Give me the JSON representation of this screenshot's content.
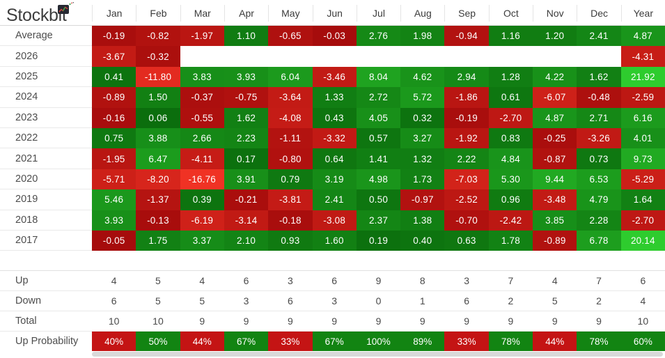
{
  "brand": {
    "name": "Stockbit"
  },
  "colors": {
    "green_dark": "#0a6b0c",
    "green_bright": "#2ecc2e",
    "red_dark": "#a40b0b",
    "red_bright": "#f03224",
    "prob_green": "#128412",
    "prob_red": "#c41414",
    "green_cap": 20,
    "red_cap": 16,
    "gamma": 0.6,
    "header_text": "#3b3b3b",
    "label_text": "#4d4d4d",
    "cell_text": "#ffffff"
  },
  "chart_data": {
    "type": "heatmap",
    "columns": [
      "Jan",
      "Feb",
      "Mar",
      "Apr",
      "May",
      "Jun",
      "Jul",
      "Aug",
      "Sep",
      "Oct",
      "Nov",
      "Dec",
      "Year"
    ],
    "value_unit": "%",
    "rows": [
      {
        "label": "Average",
        "values": [
          -0.19,
          -0.82,
          -1.97,
          1.1,
          -0.65,
          -0.03,
          2.76,
          1.98,
          -0.94,
          1.16,
          1.2,
          2.41,
          4.87
        ]
      },
      {
        "label": "2026",
        "values": [
          -3.67,
          -0.32,
          null,
          null,
          null,
          null,
          null,
          null,
          null,
          null,
          null,
          null,
          -4.31
        ]
      },
      {
        "label": "2025",
        "values": [
          0.41,
          -11.8,
          3.83,
          3.93,
          6.04,
          -3.46,
          8.04,
          4.62,
          2.94,
          1.28,
          4.22,
          1.62,
          21.92
        ]
      },
      {
        "label": "2024",
        "values": [
          -0.89,
          1.5,
          -0.37,
          -0.75,
          -3.64,
          1.33,
          2.72,
          5.72,
          -1.86,
          0.61,
          -6.07,
          -0.48,
          -2.59
        ]
      },
      {
        "label": "2023",
        "values": [
          -0.16,
          0.06,
          -0.55,
          1.62,
          -4.08,
          0.43,
          4.05,
          0.32,
          -0.19,
          -2.7,
          4.87,
          2.71,
          6.16
        ]
      },
      {
        "label": "2022",
        "values": [
          0.75,
          3.88,
          2.66,
          2.23,
          -1.11,
          -3.32,
          0.57,
          3.27,
          -1.92,
          0.83,
          -0.25,
          -3.26,
          4.01
        ]
      },
      {
        "label": "2021",
        "values": [
          -1.95,
          6.47,
          -4.11,
          0.17,
          -0.8,
          0.64,
          1.41,
          1.32,
          2.22,
          4.84,
          -0.87,
          0.73,
          9.73
        ]
      },
      {
        "label": "2020",
        "values": [
          -5.71,
          -8.2,
          -16.76,
          3.91,
          0.79,
          3.19,
          4.98,
          1.73,
          -7.03,
          5.3,
          9.44,
          6.53,
          -5.29
        ]
      },
      {
        "label": "2019",
        "values": [
          5.46,
          -1.37,
          0.39,
          -0.21,
          -3.81,
          2.41,
          0.5,
          -0.97,
          -2.52,
          0.96,
          -3.48,
          4.79,
          1.64
        ]
      },
      {
        "label": "2018",
        "values": [
          3.93,
          -0.13,
          -6.19,
          -3.14,
          -0.18,
          -3.08,
          2.37,
          1.38,
          -0.7,
          -2.42,
          3.85,
          2.28,
          -2.7
        ]
      },
      {
        "label": "2017",
        "values": [
          -0.05,
          1.75,
          3.37,
          2.1,
          0.93,
          1.6,
          0.19,
          0.4,
          0.63,
          1.78,
          -0.89,
          6.78,
          20.14
        ]
      }
    ],
    "stats": [
      {
        "label": "Up",
        "values": [
          4,
          5,
          4,
          6,
          3,
          6,
          9,
          8,
          3,
          7,
          4,
          7,
          6
        ]
      },
      {
        "label": "Down",
        "values": [
          6,
          5,
          5,
          3,
          6,
          3,
          0,
          1,
          6,
          2,
          5,
          2,
          4
        ]
      },
      {
        "label": "Total",
        "values": [
          10,
          10,
          9,
          9,
          9,
          9,
          9,
          9,
          9,
          9,
          9,
          9,
          10
        ]
      },
      {
        "label": "Up Probability",
        "values": [
          "40%",
          "50%",
          "44%",
          "67%",
          "33%",
          "67%",
          "100%",
          "89%",
          "33%",
          "78%",
          "44%",
          "78%",
          "60%"
        ],
        "colored": true
      }
    ]
  }
}
